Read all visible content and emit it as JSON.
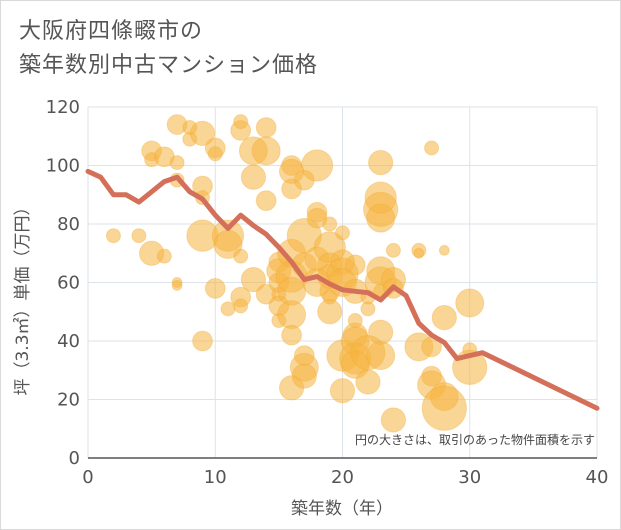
{
  "title": {
    "line1": "大阪府四條畷市の",
    "line2": "築年数別中古マンション価格"
  },
  "note": "円の大きさは、取引のあった物件面積を示す",
  "colors": {
    "bubble_fill": "#f5b53f",
    "bubble_opacity": 0.55,
    "line": "#d4705a",
    "grid": "#dde3ea",
    "axis": "#555555"
  },
  "chart_data": {
    "type": "scatter",
    "xlabel": "築年数（年）",
    "ylabel": "坪（3.3㎡）単価（万円）",
    "xlim": [
      0,
      40
    ],
    "ylim": [
      0,
      120
    ],
    "xticks": [
      0,
      10,
      20,
      30,
      40
    ],
    "yticks": [
      0,
      20,
      40,
      60,
      80,
      100,
      120
    ],
    "grid": true,
    "bubbles": [
      {
        "x": 2,
        "y": 76,
        "s": 1
      },
      {
        "x": 4,
        "y": 76,
        "s": 1
      },
      {
        "x": 5,
        "y": 70,
        "s": 3
      },
      {
        "x": 5,
        "y": 105,
        "s": 2
      },
      {
        "x": 5,
        "y": 102,
        "s": 1
      },
      {
        "x": 6,
        "y": 103,
        "s": 2
      },
      {
        "x": 6,
        "y": 69,
        "s": 1
      },
      {
        "x": 7,
        "y": 114,
        "s": 2
      },
      {
        "x": 7,
        "y": 101,
        "s": 1
      },
      {
        "x": 7,
        "y": 95,
        "s": 1
      },
      {
        "x": 7,
        "y": 60,
        "s": 0.5
      },
      {
        "x": 7,
        "y": 59,
        "s": 0.5
      },
      {
        "x": 8,
        "y": 109,
        "s": 1
      },
      {
        "x": 8,
        "y": 113,
        "s": 1
      },
      {
        "x": 9,
        "y": 111,
        "s": 3
      },
      {
        "x": 9,
        "y": 93,
        "s": 2
      },
      {
        "x": 9,
        "y": 89,
        "s": 1
      },
      {
        "x": 9,
        "y": 76,
        "s": 5
      },
      {
        "x": 9,
        "y": 40,
        "s": 2
      },
      {
        "x": 10,
        "y": 106,
        "s": 2
      },
      {
        "x": 10,
        "y": 104,
        "s": 1
      },
      {
        "x": 10,
        "y": 58,
        "s": 2
      },
      {
        "x": 11,
        "y": 76,
        "s": 5
      },
      {
        "x": 11,
        "y": 73,
        "s": 4
      },
      {
        "x": 11,
        "y": 51,
        "s": 1
      },
      {
        "x": 12,
        "y": 112,
        "s": 2
      },
      {
        "x": 12,
        "y": 115,
        "s": 1
      },
      {
        "x": 12,
        "y": 69,
        "s": 1
      },
      {
        "x": 12,
        "y": 55,
        "s": 2
      },
      {
        "x": 12,
        "y": 52,
        "s": 1
      },
      {
        "x": 13,
        "y": 105,
        "s": 4
      },
      {
        "x": 13,
        "y": 96,
        "s": 3
      },
      {
        "x": 13,
        "y": 61,
        "s": 3
      },
      {
        "x": 14,
        "y": 113,
        "s": 2
      },
      {
        "x": 14,
        "y": 105,
        "s": 4
      },
      {
        "x": 14,
        "y": 88,
        "s": 2
      },
      {
        "x": 14,
        "y": 56,
        "s": 2
      },
      {
        "x": 15,
        "y": 67,
        "s": 2
      },
      {
        "x": 15,
        "y": 64,
        "s": 3
      },
      {
        "x": 15,
        "y": 60,
        "s": 2
      },
      {
        "x": 15,
        "y": 56,
        "s": 1
      },
      {
        "x": 15,
        "y": 52,
        "s": 2
      },
      {
        "x": 15,
        "y": 47,
        "s": 1
      },
      {
        "x": 16,
        "y": 100,
        "s": 2
      },
      {
        "x": 16,
        "y": 98,
        "s": 3
      },
      {
        "x": 16,
        "y": 92,
        "s": 2
      },
      {
        "x": 16,
        "y": 70,
        "s": 4
      },
      {
        "x": 16,
        "y": 62,
        "s": 5
      },
      {
        "x": 16,
        "y": 57,
        "s": 4
      },
      {
        "x": 16,
        "y": 49,
        "s": 4
      },
      {
        "x": 16,
        "y": 42,
        "s": 2
      },
      {
        "x": 16,
        "y": 24,
        "s": 3
      },
      {
        "x": 17,
        "y": 95,
        "s": 2
      },
      {
        "x": 17,
        "y": 76,
        "s": 6
      },
      {
        "x": 17,
        "y": 66,
        "s": 3
      },
      {
        "x": 17,
        "y": 35,
        "s": 2
      },
      {
        "x": 17,
        "y": 31,
        "s": 4
      },
      {
        "x": 17,
        "y": 28,
        "s": 3
      },
      {
        "x": 18,
        "y": 100,
        "s": 5
      },
      {
        "x": 18,
        "y": 84,
        "s": 2
      },
      {
        "x": 18,
        "y": 82,
        "s": 2
      },
      {
        "x": 18,
        "y": 68,
        "s": 3
      },
      {
        "x": 18,
        "y": 60,
        "s": 4
      },
      {
        "x": 19,
        "y": 80,
        "s": 1
      },
      {
        "x": 19,
        "y": 72,
        "s": 5
      },
      {
        "x": 19,
        "y": 66,
        "s": 3
      },
      {
        "x": 19,
        "y": 62,
        "s": 3
      },
      {
        "x": 19,
        "y": 57,
        "s": 2
      },
      {
        "x": 19,
        "y": 55,
        "s": 1
      },
      {
        "x": 19,
        "y": 50,
        "s": 3
      },
      {
        "x": 20,
        "y": 77,
        "s": 1
      },
      {
        "x": 20,
        "y": 67,
        "s": 3
      },
      {
        "x": 20,
        "y": 63,
        "s": 5
      },
      {
        "x": 20,
        "y": 60,
        "s": 4
      },
      {
        "x": 20,
        "y": 35,
        "s": 5
      },
      {
        "x": 20,
        "y": 23,
        "s": 3
      },
      {
        "x": 21,
        "y": 66,
        "s": 2
      },
      {
        "x": 21,
        "y": 57,
        "s": 3
      },
      {
        "x": 21,
        "y": 47,
        "s": 1
      },
      {
        "x": 21,
        "y": 42,
        "s": 3
      },
      {
        "x": 21,
        "y": 40,
        "s": 4
      },
      {
        "x": 21,
        "y": 34,
        "s": 5
      },
      {
        "x": 21,
        "y": 32,
        "s": 4
      },
      {
        "x": 22,
        "y": 55,
        "s": 1
      },
      {
        "x": 22,
        "y": 51,
        "s": 1
      },
      {
        "x": 22,
        "y": 36,
        "s": 6
      },
      {
        "x": 22,
        "y": 26,
        "s": 3
      },
      {
        "x": 23,
        "y": 101,
        "s": 3
      },
      {
        "x": 23,
        "y": 89,
        "s": 5
      },
      {
        "x": 23,
        "y": 85,
        "s": 6
      },
      {
        "x": 23,
        "y": 82,
        "s": 4
      },
      {
        "x": 23,
        "y": 64,
        "s": 4
      },
      {
        "x": 23,
        "y": 60,
        "s": 5
      },
      {
        "x": 23,
        "y": 57,
        "s": 1
      },
      {
        "x": 23,
        "y": 43,
        "s": 3
      },
      {
        "x": 23,
        "y": 35,
        "s": 4
      },
      {
        "x": 24,
        "y": 71,
        "s": 1
      },
      {
        "x": 24,
        "y": 61,
        "s": 3
      },
      {
        "x": 24,
        "y": 58,
        "s": 2
      },
      {
        "x": 24,
        "y": 13,
        "s": 3
      },
      {
        "x": 26,
        "y": 71,
        "s": 1
      },
      {
        "x": 26,
        "y": 70,
        "s": 0.5
      },
      {
        "x": 26,
        "y": 38,
        "s": 4
      },
      {
        "x": 27,
        "y": 106,
        "s": 1
      },
      {
        "x": 27,
        "y": 38,
        "s": 2
      },
      {
        "x": 27,
        "y": 28,
        "s": 2
      },
      {
        "x": 27,
        "y": 25,
        "s": 4
      },
      {
        "x": 28,
        "y": 71,
        "s": 0.5
      },
      {
        "x": 28,
        "y": 48,
        "s": 3
      },
      {
        "x": 28,
        "y": 21,
        "s": 4
      },
      {
        "x": 28,
        "y": 17,
        "s": 10
      },
      {
        "x": 30,
        "y": 53,
        "s": 4
      },
      {
        "x": 30,
        "y": 37,
        "s": 1
      },
      {
        "x": 30,
        "y": 31,
        "s": 6
      }
    ],
    "line": {
      "x": [
        0,
        1,
        2,
        3,
        4,
        5,
        6,
        7,
        8,
        9,
        10,
        11,
        12,
        13,
        14,
        15,
        16,
        17,
        18,
        19,
        20,
        21,
        22,
        23,
        24,
        25,
        26,
        27,
        28,
        29,
        30,
        31,
        40
      ],
      "y": [
        98,
        96,
        90,
        90,
        87.5,
        91,
        94.5,
        96,
        91,
        88.5,
        83,
        78.5,
        83,
        79.5,
        76.5,
        72,
        67,
        61,
        62,
        59.5,
        57.5,
        57,
        56.5,
        54,
        58.5,
        55.5,
        46,
        42,
        39.5,
        34,
        35,
        36,
        17
      ]
    }
  }
}
